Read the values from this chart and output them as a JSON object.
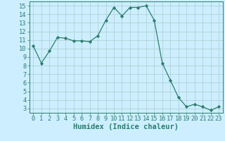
{
  "x": [
    0,
    1,
    2,
    3,
    4,
    5,
    6,
    7,
    8,
    9,
    10,
    11,
    12,
    13,
    14,
    15,
    16,
    17,
    18,
    19,
    20,
    21,
    22,
    23
  ],
  "y": [
    10.3,
    8.3,
    9.7,
    11.3,
    11.2,
    10.9,
    10.9,
    10.8,
    11.5,
    13.3,
    14.8,
    13.8,
    14.8,
    14.8,
    15.0,
    13.3,
    8.3,
    6.3,
    4.3,
    3.2,
    3.5,
    3.2,
    2.8,
    3.2
  ],
  "line_color": "#2d7d6e",
  "marker": "D",
  "marker_size": 2.2,
  "bg_color": "#cceeff",
  "grid_color": "#aacccc",
  "xlabel": "Humidex (Indice chaleur)",
  "xlim": [
    -0.5,
    23.5
  ],
  "ylim": [
    2.5,
    15.5
  ],
  "yticks": [
    3,
    4,
    5,
    6,
    7,
    8,
    9,
    10,
    11,
    12,
    13,
    14,
    15
  ],
  "xticks": [
    0,
    1,
    2,
    3,
    4,
    5,
    6,
    7,
    8,
    9,
    10,
    11,
    12,
    13,
    14,
    15,
    16,
    17,
    18,
    19,
    20,
    21,
    22,
    23
  ],
  "tick_label_fontsize": 6.2,
  "xlabel_fontsize": 7.5,
  "axis_color": "#2d7d6e",
  "linewidth": 0.9
}
